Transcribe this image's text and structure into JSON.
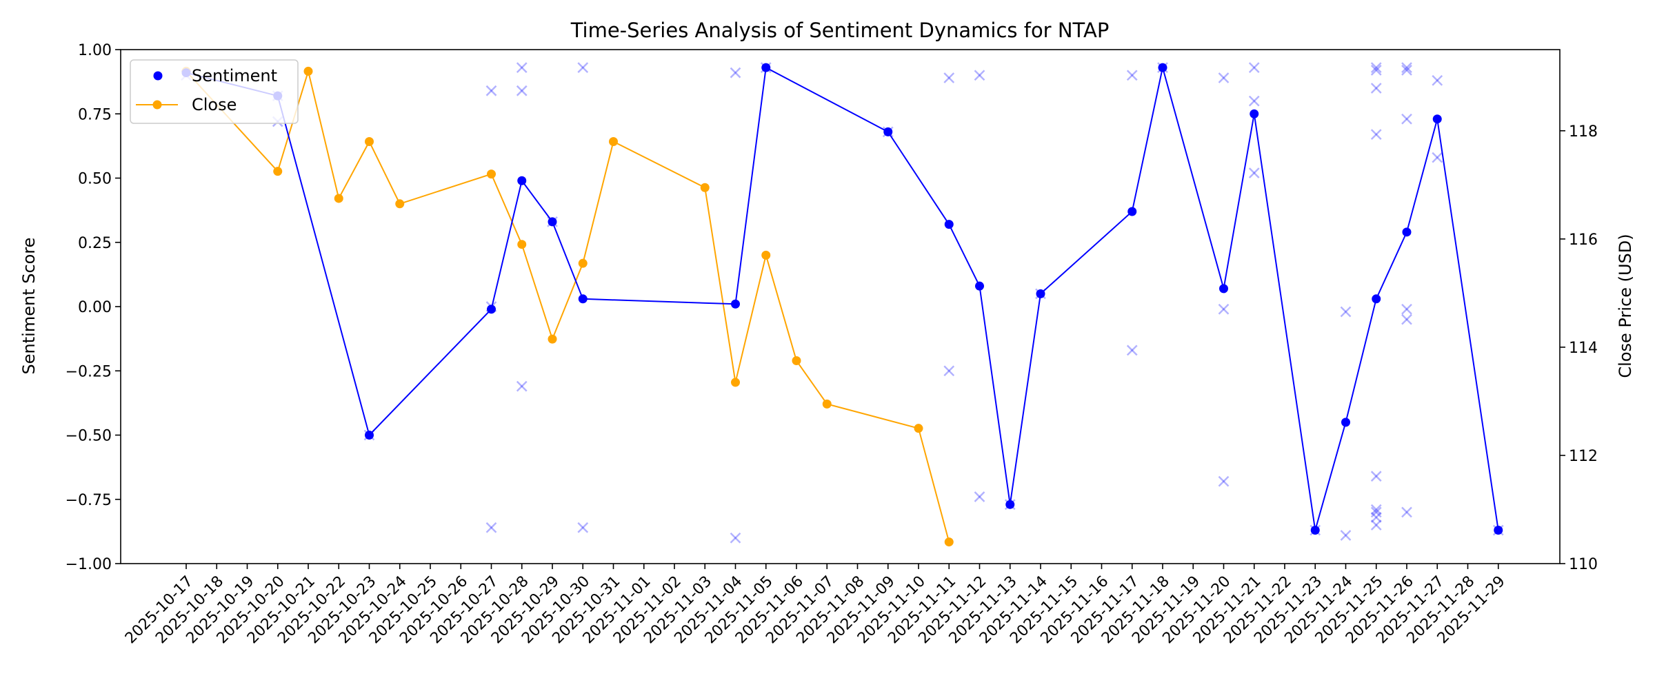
{
  "chart_data": {
    "type": "line",
    "title": "Time-Series Analysis of Sentiment Dynamics for NTAP",
    "xlabel": "",
    "ylabel": "Sentiment Score",
    "ylabel_right": "Close Price (USD)",
    "ylim": [
      -1.0,
      1.0
    ],
    "ylim_right": [
      110,
      119.5
    ],
    "yticks": [
      -1.0,
      -0.75,
      -0.5,
      -0.25,
      0.0,
      0.25,
      0.5,
      0.75,
      1.0
    ],
    "yticks_labels": [
      "−1.00",
      "−0.75",
      "−0.50",
      "−0.25",
      "0.00",
      "0.25",
      "0.50",
      "0.75",
      "1.00"
    ],
    "yticks_right": [
      110,
      112,
      114,
      116,
      118
    ],
    "categories": [
      "2025-10-17",
      "2025-10-18",
      "2025-10-19",
      "2025-10-20",
      "2025-10-21",
      "2025-10-22",
      "2025-10-23",
      "2025-10-24",
      "2025-10-25",
      "2025-10-26",
      "2025-10-27",
      "2025-10-28",
      "2025-10-29",
      "2025-10-30",
      "2025-10-31",
      "2025-11-01",
      "2025-11-02",
      "2025-11-03",
      "2025-11-04",
      "2025-11-05",
      "2025-11-06",
      "2025-11-07",
      "2025-11-08",
      "2025-11-09",
      "2025-11-10",
      "2025-11-11",
      "2025-11-12",
      "2025-11-13",
      "2025-11-14",
      "2025-11-15",
      "2025-11-16",
      "2025-11-17",
      "2025-11-18",
      "2025-11-19",
      "2025-11-20",
      "2025-11-21",
      "2025-11-22",
      "2025-11-23",
      "2025-11-24",
      "2025-11-25",
      "2025-11-26",
      "2025-11-27",
      "2025-11-28",
      "2025-11-29"
    ],
    "grid": false,
    "legend_position": "top-left",
    "series": [
      {
        "name": "Sentiment",
        "axis": "left",
        "color": "#0000ff",
        "marker": "circle",
        "points": [
          {
            "x": "2025-10-17",
            "y": 0.91
          },
          {
            "x": "2025-10-20",
            "y": 0.82
          },
          {
            "x": "2025-10-23",
            "y": -0.5
          },
          {
            "x": "2025-10-27",
            "y": -0.01
          },
          {
            "x": "2025-10-28",
            "y": 0.49
          },
          {
            "x": "2025-10-29",
            "y": 0.33
          },
          {
            "x": "2025-10-30",
            "y": 0.03
          },
          {
            "x": "2025-11-04",
            "y": 0.01
          },
          {
            "x": "2025-11-05",
            "y": 0.93
          },
          {
            "x": "2025-11-09",
            "y": 0.68
          },
          {
            "x": "2025-11-11",
            "y": 0.32
          },
          {
            "x": "2025-11-12",
            "y": 0.08
          },
          {
            "x": "2025-11-13",
            "y": -0.77
          },
          {
            "x": "2025-11-14",
            "y": 0.05
          },
          {
            "x": "2025-11-17",
            "y": 0.37
          },
          {
            "x": "2025-11-18",
            "y": 0.93
          },
          {
            "x": "2025-11-20",
            "y": 0.07
          },
          {
            "x": "2025-11-21",
            "y": 0.75
          },
          {
            "x": "2025-11-23",
            "y": -0.87
          },
          {
            "x": "2025-11-24",
            "y": -0.45
          },
          {
            "x": "2025-11-25",
            "y": 0.03
          },
          {
            "x": "2025-11-26",
            "y": 0.29
          },
          {
            "x": "2025-11-27",
            "y": 0.73
          },
          {
            "x": "2025-11-29",
            "y": -0.87
          }
        ]
      },
      {
        "name": "Close",
        "axis": "right",
        "color": "#ffa500",
        "marker": "circle",
        "points": [
          {
            "x": "2025-10-17",
            "y": 119.1
          },
          {
            "x": "2025-10-20",
            "y": 117.25
          },
          {
            "x": "2025-10-21",
            "y": 119.1
          },
          {
            "x": "2025-10-22",
            "y": 116.75
          },
          {
            "x": "2025-10-23",
            "y": 117.8
          },
          {
            "x": "2025-10-24",
            "y": 116.65
          },
          {
            "x": "2025-10-27",
            "y": 117.2
          },
          {
            "x": "2025-10-28",
            "y": 115.9
          },
          {
            "x": "2025-10-29",
            "y": 114.15
          },
          {
            "x": "2025-10-30",
            "y": 115.55
          },
          {
            "x": "2025-10-31",
            "y": 117.8
          },
          {
            "x": "2025-11-03",
            "y": 116.95
          },
          {
            "x": "2025-11-04",
            "y": 113.35
          },
          {
            "x": "2025-11-05",
            "y": 115.7
          },
          {
            "x": "2025-11-06",
            "y": 113.75
          },
          {
            "x": "2025-11-07",
            "y": 112.95
          },
          {
            "x": "2025-11-10",
            "y": 112.5
          },
          {
            "x": "2025-11-11",
            "y": 110.4
          }
        ]
      },
      {
        "name": "",
        "axis": "left",
        "type": "scatter",
        "marker": "x",
        "color": "#0000ff",
        "opacity": 0.3,
        "points": [
          {
            "x": "2025-10-17",
            "y": 0.9
          },
          {
            "x": "2025-10-20",
            "y": 0.82
          },
          {
            "x": "2025-10-20",
            "y": 0.72
          },
          {
            "x": "2025-10-23",
            "y": -0.5
          },
          {
            "x": "2025-10-27",
            "y": 0.84
          },
          {
            "x": "2025-10-27",
            "y": 0.0
          },
          {
            "x": "2025-10-27",
            "y": -0.86
          },
          {
            "x": "2025-10-28",
            "y": 0.93
          },
          {
            "x": "2025-10-28",
            "y": 0.84
          },
          {
            "x": "2025-10-28",
            "y": -0.31
          },
          {
            "x": "2025-10-29",
            "y": 0.33
          },
          {
            "x": "2025-10-30",
            "y": 0.93
          },
          {
            "x": "2025-10-30",
            "y": -0.86
          },
          {
            "x": "2025-11-04",
            "y": 0.91
          },
          {
            "x": "2025-11-04",
            "y": -0.9
          },
          {
            "x": "2025-11-05",
            "y": 0.93
          },
          {
            "x": "2025-11-09",
            "y": 0.68
          },
          {
            "x": "2025-11-11",
            "y": 0.89
          },
          {
            "x": "2025-11-11",
            "y": -0.25
          },
          {
            "x": "2025-11-12",
            "y": 0.9
          },
          {
            "x": "2025-11-12",
            "y": -0.74
          },
          {
            "x": "2025-11-13",
            "y": -0.77
          },
          {
            "x": "2025-11-14",
            "y": 0.05
          },
          {
            "x": "2025-11-17",
            "y": 0.9
          },
          {
            "x": "2025-11-17",
            "y": -0.17
          },
          {
            "x": "2025-11-18",
            "y": 0.93
          },
          {
            "x": "2025-11-20",
            "y": 0.89
          },
          {
            "x": "2025-11-20",
            "y": -0.01
          },
          {
            "x": "2025-11-20",
            "y": -0.68
          },
          {
            "x": "2025-11-21",
            "y": 0.93
          },
          {
            "x": "2025-11-21",
            "y": 0.8
          },
          {
            "x": "2025-11-21",
            "y": 0.52
          },
          {
            "x": "2025-11-23",
            "y": -0.87
          },
          {
            "x": "2025-11-24",
            "y": -0.02
          },
          {
            "x": "2025-11-24",
            "y": -0.89
          },
          {
            "x": "2025-11-25",
            "y": 0.93
          },
          {
            "x": "2025-11-25",
            "y": 0.92
          },
          {
            "x": "2025-11-25",
            "y": 0.85
          },
          {
            "x": "2025-11-25",
            "y": 0.67
          },
          {
            "x": "2025-11-25",
            "y": -0.66
          },
          {
            "x": "2025-11-25",
            "y": -0.79
          },
          {
            "x": "2025-11-25",
            "y": -0.8
          },
          {
            "x": "2025-11-25",
            "y": -0.82
          },
          {
            "x": "2025-11-25",
            "y": -0.85
          },
          {
            "x": "2025-11-26",
            "y": 0.93
          },
          {
            "x": "2025-11-26",
            "y": 0.92
          },
          {
            "x": "2025-11-26",
            "y": 0.73
          },
          {
            "x": "2025-11-26",
            "y": -0.01
          },
          {
            "x": "2025-11-26",
            "y": -0.05
          },
          {
            "x": "2025-11-26",
            "y": -0.8
          },
          {
            "x": "2025-11-27",
            "y": 0.88
          },
          {
            "x": "2025-11-27",
            "y": 0.58
          },
          {
            "x": "2025-11-29",
            "y": -0.87
          }
        ]
      }
    ]
  }
}
